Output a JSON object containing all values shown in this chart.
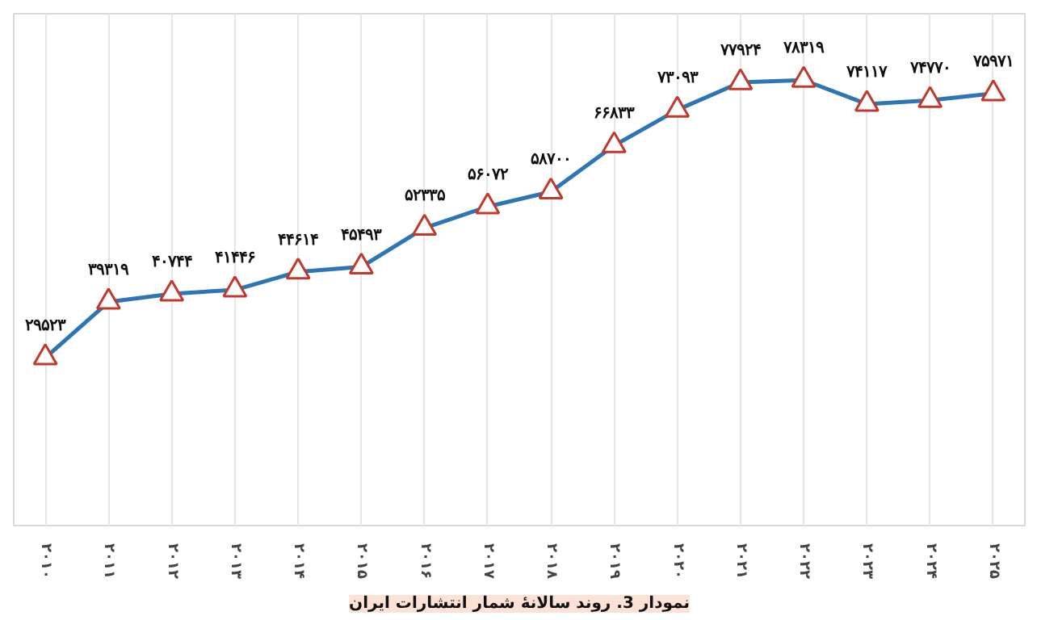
{
  "chart_data": {
    "type": "line",
    "title": "نمودار 3. روند سالانهٔ شمار انتشارات ایران",
    "categories": [
      "۲۰۱۰",
      "۲۰۱۱",
      "۲۰۱۲",
      "۲۰۱۳",
      "۲۰۱۴",
      "۲۰۱۵",
      "۲۰۱۶",
      "۲۰۱۷",
      "۲۰۱۸",
      "۲۰۱۹",
      "۲۰۲۰",
      "۲۰۲۱",
      "۲۰۲۲",
      "۲۰۲۳",
      "۲۰۲۴",
      "۲۰۲۵"
    ],
    "series": [
      {
        "color": "#2e75b6",
        "values": [
          29523,
          39319,
          40744,
          41446,
          44614,
          45493,
          52335,
          56072,
          58700,
          66833,
          73093,
          77924,
          78319,
          74117,
          74770,
          75971
        ],
        "value_labels": [
          "۲۹۵۲۳",
          "۳۹۳۱۹",
          "۴۰۷۴۴",
          "۴۱۴۴۶",
          "۴۴۶۱۴",
          "۴۵۴۹۳",
          "۵۲۳۳۵",
          "۵۶۰۷۲",
          "۵۸۷۰۰",
          "۶۶۸۳۳",
          "۷۳۰۹۳",
          "۷۷۹۲۴",
          "۷۸۳۱۹",
          "۷۴۱۱۷",
          "۷۴۷۷۰",
          "۷۵۹۷۱"
        ]
      }
    ],
    "ylim": [
      0,
      90000
    ],
    "tick_labels": "x",
    "grid": "x",
    "marker": "triangle",
    "line_style": "solid"
  }
}
